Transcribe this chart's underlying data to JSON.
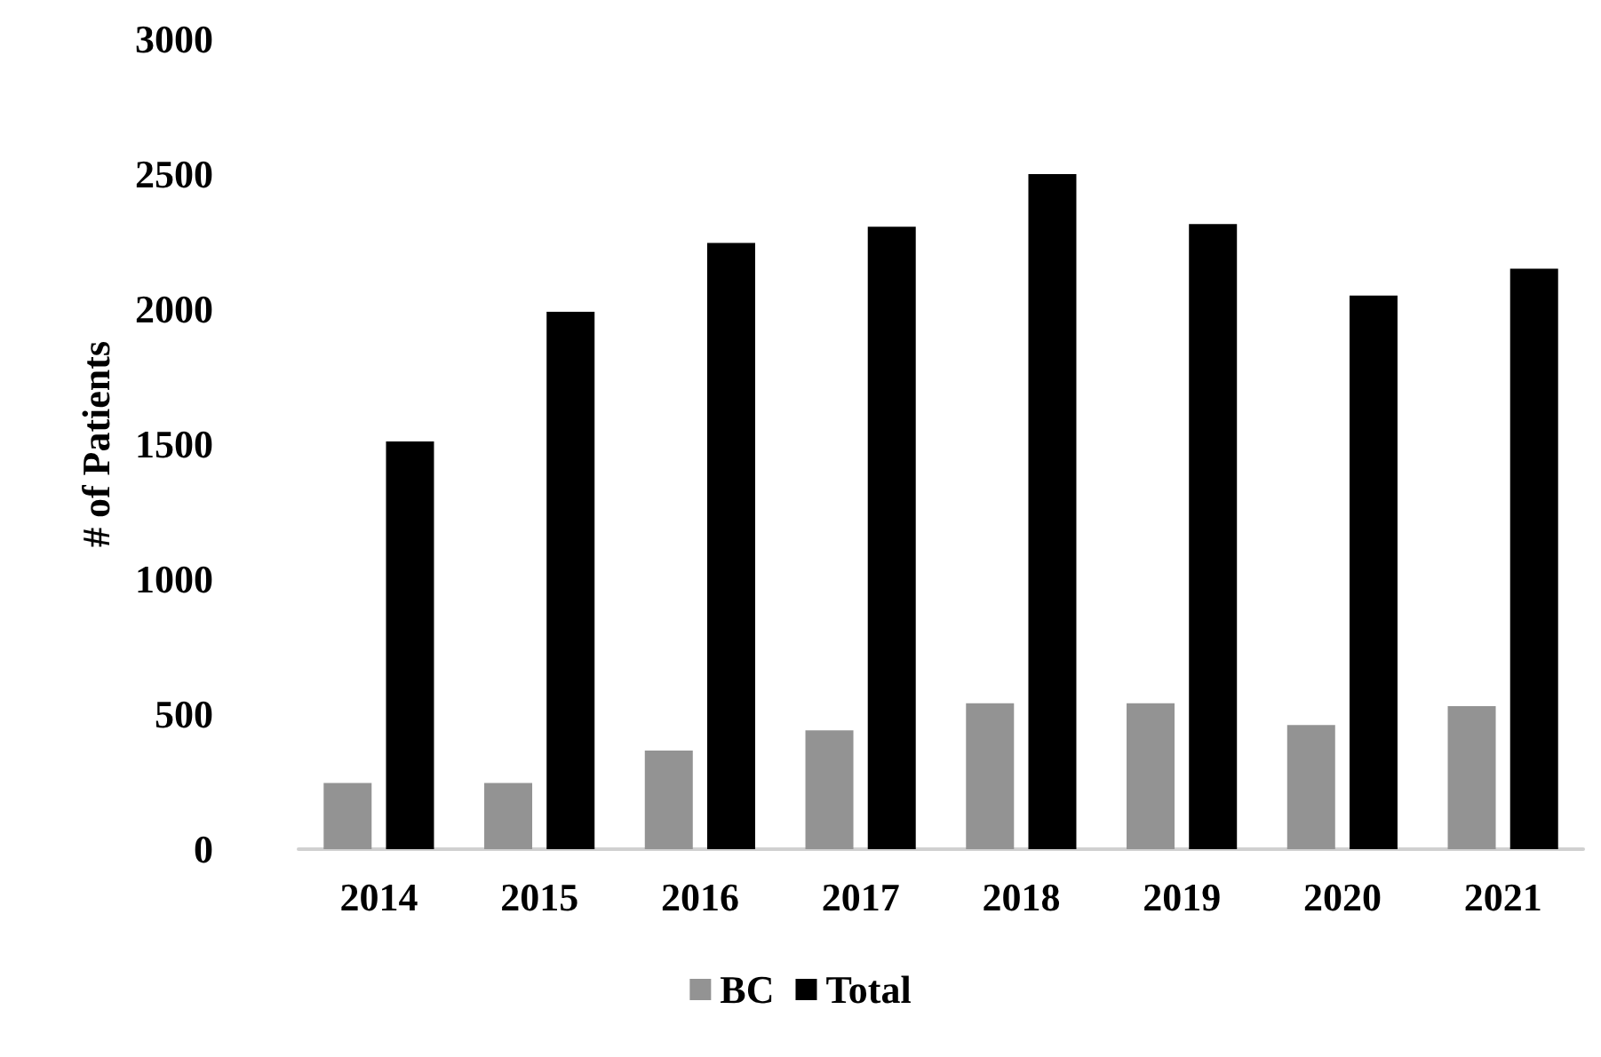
{
  "chart_data": {
    "type": "bar",
    "ylabel": "# of Patients",
    "categories": [
      "2014",
      "2015",
      "2016",
      "2017",
      "2018",
      "2019",
      "2020",
      "2021"
    ],
    "series": [
      {
        "name": "BC",
        "color": "#939393",
        "values": [
          245,
          245,
          365,
          440,
          540,
          540,
          460,
          530
        ]
      },
      {
        "name": "Total",
        "color": "#000000",
        "values": [
          1510,
          1990,
          2245,
          2305,
          2500,
          2315,
          2050,
          2150
        ]
      }
    ],
    "ylim": [
      0,
      3000
    ],
    "yticks": [
      0,
      500,
      1000,
      1500,
      2000,
      2500,
      3000
    ],
    "grid": false,
    "legend": "bottom"
  }
}
